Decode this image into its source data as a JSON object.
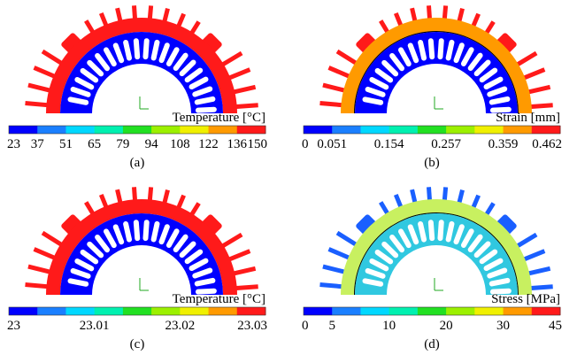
{
  "panels": [
    {
      "legend_title": "Temperature [°C]",
      "ticks": [
        "23",
        "37",
        "51",
        "65",
        "79",
        "94",
        "108",
        "122",
        "136",
        "150"
      ],
      "caption": "(a)"
    },
    {
      "legend_title": "Strain [mm]",
      "ticks": [
        "0",
        "0.051",
        "0.154",
        "0.257",
        "0.359",
        "0.462"
      ],
      "caption": "(b)"
    },
    {
      "legend_title": "Temperature [°C]",
      "ticks": [
        "23",
        "23.01",
        "23.02",
        "23.03"
      ],
      "caption": "(c)"
    },
    {
      "legend_title": "Stress [MPa]",
      "ticks": [
        "0",
        "5",
        "10",
        "20",
        "30",
        "45"
      ],
      "caption": "(d)"
    }
  ]
}
